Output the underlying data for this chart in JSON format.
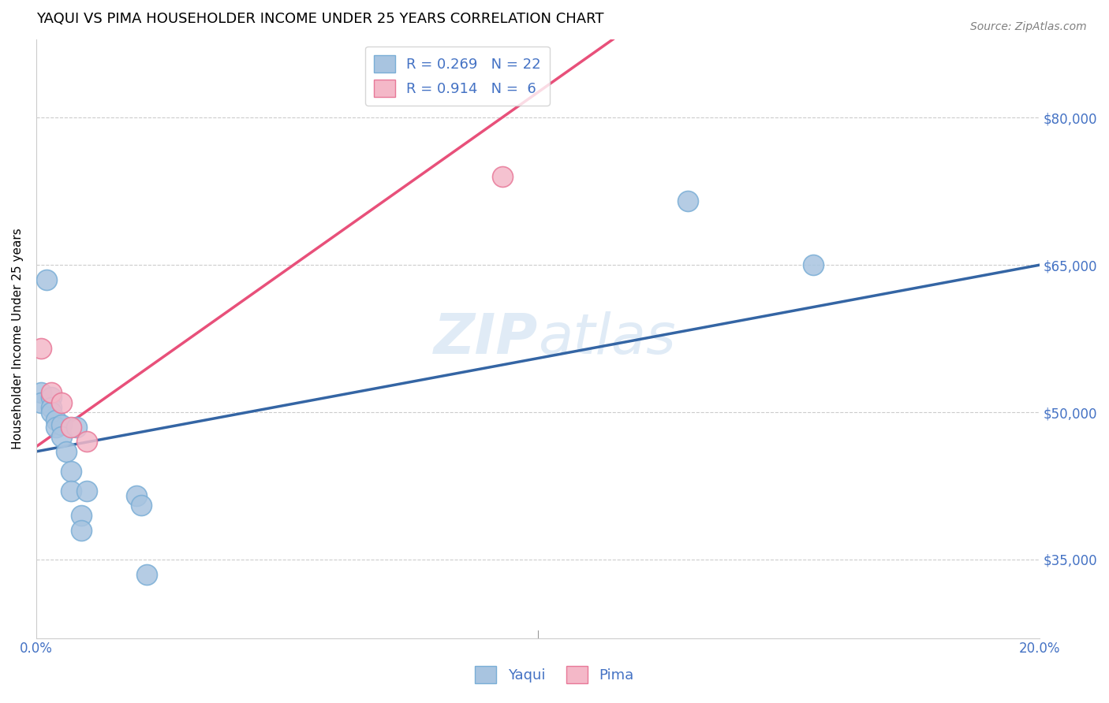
{
  "title": "YAQUI VS PIMA HOUSEHOLDER INCOME UNDER 25 YEARS CORRELATION CHART",
  "source": "Source: ZipAtlas.com",
  "ylabel": "Householder Income Under 25 years",
  "watermark": "ZIPatlas",
  "yaqui_color": "#a8c4e0",
  "yaqui_edge": "#7aaed6",
  "pima_color": "#f4b8c8",
  "pima_edge": "#e87898",
  "line_yaqui": "#3465a4",
  "line_pima": "#e8507a",
  "legend_text_color": "#4472c4",
  "ytick_color": "#4472c4",
  "xtick_color": "#4472c4",
  "yaqui_R": 0.269,
  "yaqui_N": 22,
  "pima_R": 0.914,
  "pima_N": 6,
  "xlim": [
    0.0,
    0.2
  ],
  "ylim": [
    27000,
    88000
  ],
  "yticks": [
    35000,
    50000,
    65000,
    80000
  ],
  "xticks": [
    0.0,
    0.05,
    0.1,
    0.15,
    0.2
  ],
  "xtick_labels": [
    "0.0%",
    "",
    "",
    "",
    "20.0%"
  ],
  "ytick_labels": [
    "$35,000",
    "$50,000",
    "$65,000",
    "$80,000"
  ],
  "yaqui_x": [
    0.001,
    0.001,
    0.002,
    0.003,
    0.003,
    0.003,
    0.004,
    0.004,
    0.005,
    0.005,
    0.006,
    0.007,
    0.007,
    0.008,
    0.009,
    0.009,
    0.01,
    0.02,
    0.021,
    0.022,
    0.13,
    0.155
  ],
  "yaqui_y": [
    52000,
    51000,
    63500,
    51500,
    50500,
    50000,
    49200,
    48500,
    48700,
    47500,
    46000,
    44000,
    42000,
    48500,
    39500,
    38000,
    42000,
    41500,
    40500,
    33500,
    71500,
    65000
  ],
  "pima_x": [
    0.001,
    0.003,
    0.005,
    0.007,
    0.01,
    0.093
  ],
  "pima_y": [
    56500,
    52000,
    51000,
    48500,
    47000,
    74000
  ],
  "blue_line_x0": 0.0,
  "blue_line_x1": 0.2,
  "blue_line_y0": 46000,
  "blue_line_y1": 65000,
  "pink_line_x0": 0.0,
  "pink_line_x1": 0.115,
  "pink_line_y0": 46500,
  "pink_line_y1": 88000
}
